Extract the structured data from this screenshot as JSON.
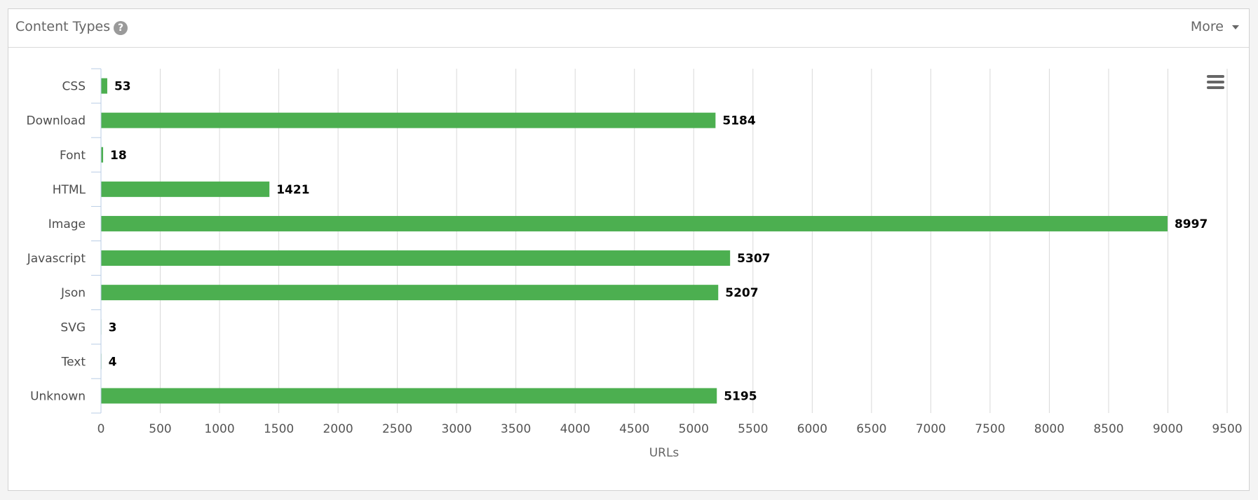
{
  "panel": {
    "title": "Content Types",
    "help_icon": "question-circle-icon",
    "more_label": "More",
    "more_icon": "caret-down-icon"
  },
  "chart_menu_icon": "hamburger-menu-icon",
  "colors": {
    "bar": "#4caf50",
    "grid": "#d8d8d8",
    "axis": "#b9cde5"
  },
  "chart_data": {
    "type": "bar",
    "orientation": "horizontal",
    "categories": [
      "CSS",
      "Download",
      "Font",
      "HTML",
      "Image",
      "Javascript",
      "Json",
      "SVG",
      "Text",
      "Unknown"
    ],
    "values": [
      53,
      5184,
      18,
      1421,
      8997,
      5307,
      5207,
      3,
      4,
      5195
    ],
    "xlabel": "URLs",
    "xlim": [
      0,
      9500
    ],
    "xticks": [
      0,
      500,
      1000,
      1500,
      2000,
      2500,
      3000,
      3500,
      4000,
      4500,
      5000,
      5500,
      6000,
      6500,
      7000,
      7500,
      8000,
      8500,
      9000,
      9500
    ],
    "grid": true,
    "data_labels": true
  }
}
